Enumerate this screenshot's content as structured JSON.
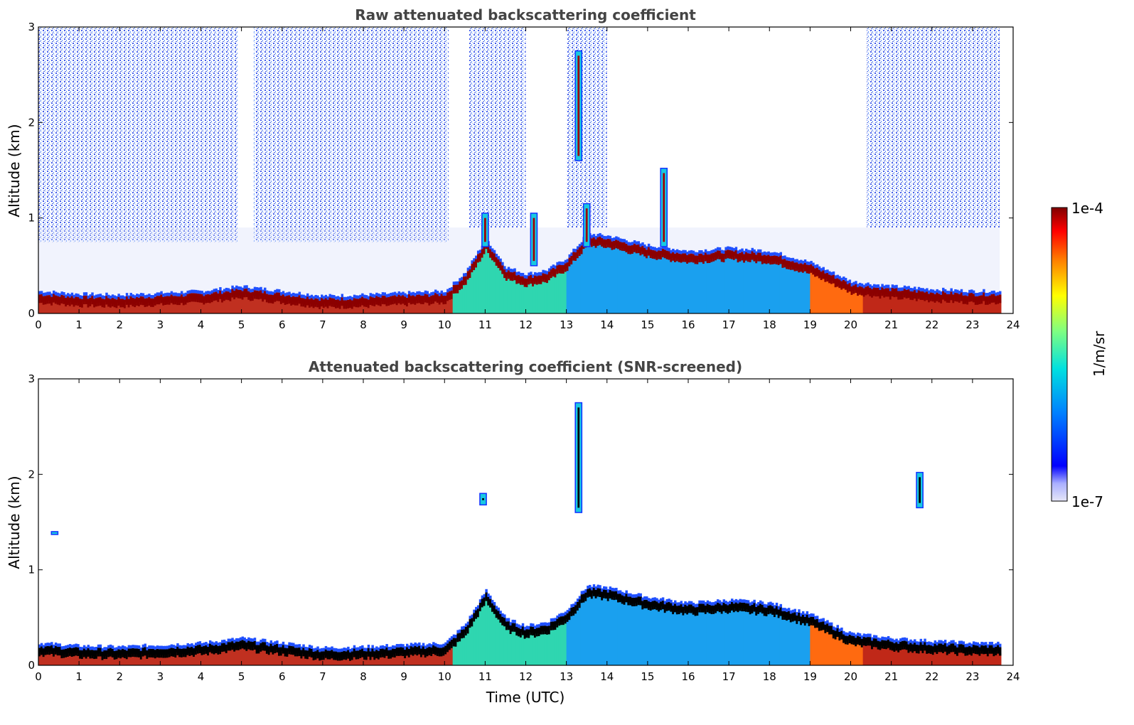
{
  "colors": {
    "background": "#ffffff",
    "title": "#444444",
    "boundary_layer": "#8b0000",
    "aerosol_fill": "#19a6e8",
    "noise": "#1f3fe8",
    "screened_core": "#000000"
  },
  "colorbar": {
    "max_label": "1e-4",
    "min_label": "1e-7",
    "unit_label": "1/m/sr",
    "colormap": "jet"
  },
  "chart_data": [
    {
      "type": "heatmap",
      "title": "Raw attenuated backscattering coefficient",
      "xlabel": "",
      "ylabel": "Altitude (km)",
      "xlim": [
        0,
        24
      ],
      "ylim": [
        0,
        3
      ],
      "x_ticks": [
        "0",
        "1",
        "2",
        "3",
        "4",
        "5",
        "6",
        "7",
        "8",
        "9",
        "10",
        "11",
        "12",
        "13",
        "14",
        "15",
        "16",
        "17",
        "18",
        "19",
        "20",
        "21",
        "22",
        "23",
        "24"
      ],
      "y_ticks": [
        "0",
        "1",
        "2",
        "3"
      ],
      "data_end_hour": 23.67,
      "boundary_layer_top_km": {
        "hour": [
          0,
          1,
          2,
          3,
          4,
          5,
          6,
          7,
          8,
          9,
          10,
          10.5,
          11,
          11.5,
          12,
          12.5,
          13,
          13.5,
          14,
          15,
          15.5,
          16,
          17,
          18,
          19,
          19.5,
          20,
          21,
          22,
          23,
          23.67
        ],
        "km": [
          0.2,
          0.17,
          0.16,
          0.18,
          0.2,
          0.25,
          0.2,
          0.15,
          0.16,
          0.18,
          0.2,
          0.4,
          0.75,
          0.45,
          0.38,
          0.42,
          0.55,
          0.8,
          0.78,
          0.68,
          0.65,
          0.62,
          0.65,
          0.62,
          0.5,
          0.4,
          0.3,
          0.25,
          0.22,
          0.2,
          0.2
        ]
      },
      "noise_regions_hours": [
        [
          0,
          4.9
        ],
        [
          5.3,
          10.1
        ],
        [
          10.6,
          12.0
        ],
        [
          13.0,
          14.0
        ],
        [
          20.4,
          23.67
        ]
      ],
      "feature_plumes": [
        {
          "hour": 13.3,
          "base_km": 1.6,
          "top_km": 2.75
        },
        {
          "hour": 15.4,
          "base_km": 0.7,
          "top_km": 1.52
        },
        {
          "hour": 11.0,
          "base_km": 0.7,
          "top_km": 1.05
        },
        {
          "hour": 12.2,
          "base_km": 0.5,
          "top_km": 1.05
        },
        {
          "hour": 13.5,
          "base_km": 0.7,
          "top_km": 1.15
        }
      ]
    },
    {
      "type": "heatmap",
      "title": "Attenuated backscattering coefficient (SNR-screened)",
      "xlabel": "Time (UTC)",
      "ylabel": "Altitude (km)",
      "xlim": [
        0,
        24
      ],
      "ylim": [
        0,
        3
      ],
      "x_ticks": [
        "0",
        "1",
        "2",
        "3",
        "4",
        "5",
        "6",
        "7",
        "8",
        "9",
        "10",
        "11",
        "12",
        "13",
        "14",
        "15",
        "16",
        "17",
        "18",
        "19",
        "20",
        "21",
        "22",
        "23",
        "24"
      ],
      "y_ticks": [
        "0",
        "1",
        "2",
        "3"
      ],
      "data_end_hour": 23.67,
      "isolated_features": [
        {
          "hour": 13.3,
          "base_km": 1.6,
          "top_km": 2.75
        },
        {
          "hour": 10.95,
          "base_km": 1.68,
          "top_km": 1.8
        },
        {
          "hour": 21.7,
          "base_km": 1.65,
          "top_km": 2.02
        },
        {
          "hour": 0.4,
          "base_km": 1.37,
          "top_km": 1.4
        }
      ]
    }
  ]
}
